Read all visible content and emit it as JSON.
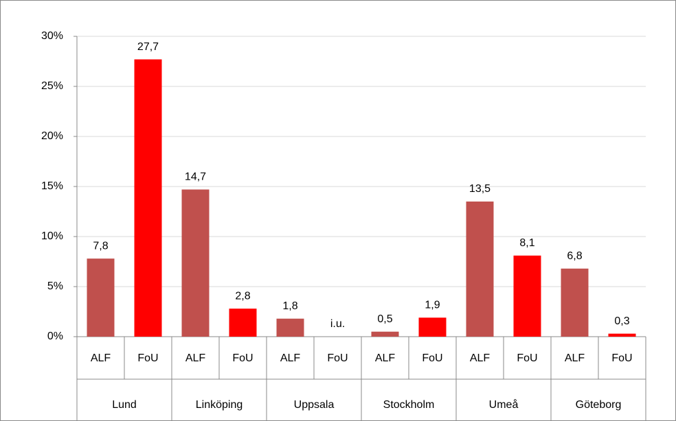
{
  "chart_data": {
    "type": "bar",
    "categories": [
      "ALF",
      "FoU",
      "ALF",
      "FoU",
      "ALF",
      "FoU",
      "ALF",
      "FoU",
      "ALF",
      "FoU",
      "ALF",
      "FoU"
    ],
    "groups": [
      "Lund",
      "Linköping",
      "Uppsala",
      "Stockholm",
      "Umeå",
      "Göteborg"
    ],
    "values": [
      7.8,
      27.7,
      14.7,
      2.8,
      1.8,
      null,
      0.5,
      1.9,
      13.5,
      8.1,
      6.8,
      0.3
    ],
    "value_labels": [
      "7,8",
      "27,7",
      "14,7",
      "2,8",
      "1,8",
      "i.u.",
      "0,5",
      "1,9",
      "13,5",
      "8,1",
      "6,8",
      "0,3"
    ],
    "colors": [
      "#c0504d",
      "#ff0000",
      "#c0504d",
      "#ff0000",
      "#c0504d",
      "#ff0000",
      "#c0504d",
      "#ff0000",
      "#c0504d",
      "#ff0000",
      "#c0504d",
      "#ff0000"
    ],
    "ylim": [
      0,
      30
    ],
    "yticks": [
      {
        "value": 0,
        "label": "0%"
      },
      {
        "value": 5,
        "label": "5%"
      },
      {
        "value": 10,
        "label": "10%"
      },
      {
        "value": 15,
        "label": "15%"
      },
      {
        "value": 20,
        "label": "20%"
      },
      {
        "value": 25,
        "label": "25%"
      },
      {
        "value": 30,
        "label": "30%"
      }
    ],
    "grid": true
  }
}
